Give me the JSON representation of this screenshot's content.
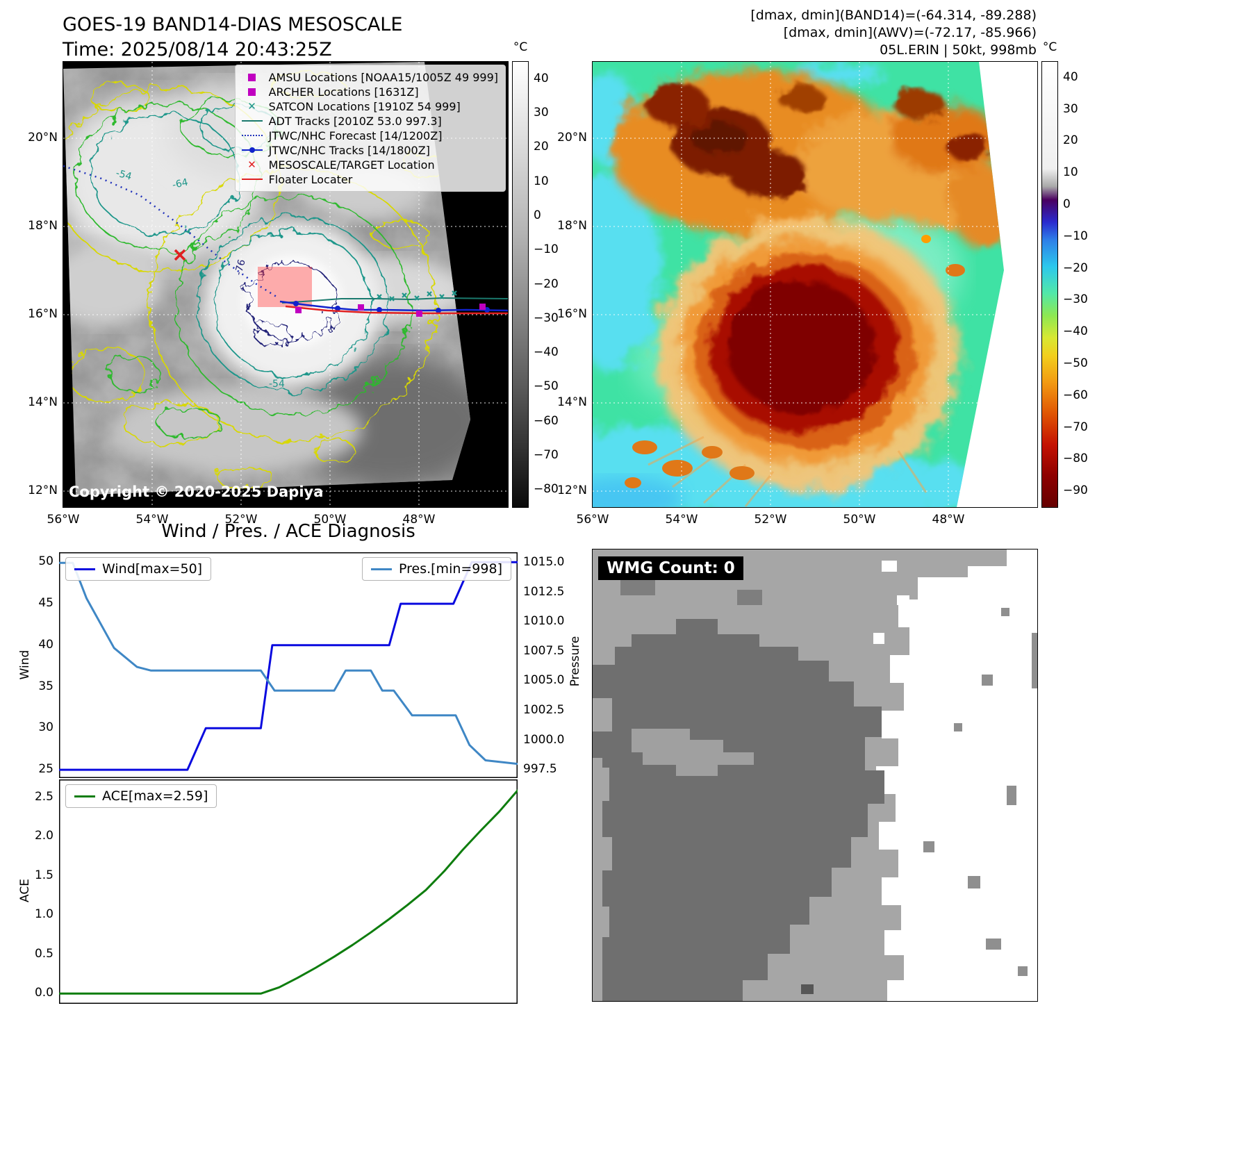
{
  "panel_band14": {
    "title1": "GOES-19 BAND14-DIAS MESOSCALE",
    "title2": "Time: 2025/08/14 20:43:25Z",
    "copyright": "Copyright © 2020-2025 Dapiya",
    "legend": [
      {
        "label": "AMSU Locations [NOAA15/1005Z 49 999]",
        "marker": "square",
        "color": "#c000c0"
      },
      {
        "label": "ARCHER Locations [1631Z]",
        "marker": "square",
        "color": "#c000c0"
      },
      {
        "label": "SATCON Locations [1910Z 54 999]",
        "marker": "x",
        "color": "#1f968a"
      },
      {
        "label": "ADT Tracks [2010Z 53.0 997.3]",
        "marker": "line",
        "color": "#1b7a6e"
      },
      {
        "label": "JTWC/NHC Forecast [14/1200Z]",
        "marker": "dotted",
        "color": "#2233bb"
      },
      {
        "label": "JTWC/NHC Tracks [14/1800Z]",
        "marker": "line-dot",
        "color": "#1122cc"
      },
      {
        "label": "MESOSCALE/TARGET Location",
        "marker": "x",
        "color": "#e02020"
      },
      {
        "label": "Floater Locater",
        "marker": "line",
        "color": "#e02020"
      }
    ],
    "lat_ticks": [
      "20°N",
      "18°N",
      "16°N",
      "14°N",
      "12°N"
    ],
    "lon_ticks": [
      "56°W",
      "54°W",
      "52°W",
      "50°W",
      "48°W"
    ],
    "colorbar": {
      "unit": "°C",
      "vmax": 45,
      "vmin": -85,
      "ticks": [
        "40",
        "30",
        "20",
        "10",
        "0",
        "−10",
        "−20",
        "−30",
        "−40",
        "−50",
        "−60",
        "−70",
        "−80"
      ]
    },
    "contour_labels": [
      "-54",
      "-64",
      "-76",
      "-54"
    ]
  },
  "panel_awv": {
    "header": [
      "[dmax, dmin](BAND14)=(-64.314, -89.288)",
      "[dmax, dmin](AWV)=(-72.17, -85.966)",
      "05L.ERIN | 50kt, 998mb"
    ],
    "lat_ticks": [
      "20°N",
      "18°N",
      "16°N",
      "14°N",
      "12°N"
    ],
    "lon_ticks": [
      "56°W",
      "54°W",
      "52°W",
      "50°W",
      "48°W"
    ],
    "colorbar": {
      "unit": "°C",
      "vmax": 45,
      "vmin": -95,
      "ticks": [
        "40",
        "30",
        "20",
        "10",
        "0",
        "−10",
        "−20",
        "−30",
        "−40",
        "−50",
        "−60",
        "−70",
        "−80",
        "−90"
      ]
    }
  },
  "wmg": {
    "count_label": "WMG Count: 0"
  },
  "chart_data": [
    {
      "type": "line",
      "title": "Wind / Pres. / ACE Diagnosis",
      "series": [
        {
          "name": "Wind[max=50]",
          "slug": "wind-line",
          "axis": "left",
          "color": "#0a0adf",
          "x": [
            0.0,
            0.28,
            0.32,
            0.44,
            0.465,
            0.72,
            0.745,
            0.86,
            0.9,
            1.0
          ],
          "y": [
            25,
            25,
            30,
            30,
            40,
            40,
            45,
            45,
            50,
            50
          ]
        },
        {
          "name": "Pres.[min=998]",
          "slug": "pressure-line",
          "axis": "right",
          "color": "#3f87c5",
          "x": [
            0.0,
            0.03,
            0.06,
            0.12,
            0.17,
            0.2,
            0.44,
            0.47,
            0.6,
            0.625,
            0.68,
            0.705,
            0.73,
            0.77,
            0.865,
            0.895,
            0.93,
            1.0
          ],
          "y": [
            1015,
            1015,
            1012,
            1007.8,
            1006.2,
            1005.9,
            1005.9,
            1004.2,
            1004.2,
            1005.9,
            1005.9,
            1004.2,
            1004.2,
            1002.1,
            1002.1,
            999.6,
            998.3,
            998.0
          ]
        }
      ],
      "left_axis": {
        "label": "Wind",
        "ticks": [
          "25",
          "30",
          "35",
          "40",
          "45",
          "50"
        ],
        "lim": [
          24,
          51.2
        ]
      },
      "right_axis": {
        "label": "Pressure",
        "ticks": [
          "997.5",
          "1000.0",
          "1002.5",
          "1005.0",
          "1007.5",
          "1010.0",
          "1012.5",
          "1015.0"
        ],
        "lim": [
          996.8,
          1015.9
        ]
      },
      "legend_position": "upper-left-and-upper-right",
      "grid": false
    },
    {
      "type": "line",
      "series": [
        {
          "name": "ACE[max=2.59]",
          "slug": "ace-line",
          "axis": "left",
          "color": "#0e7d0e",
          "x": [
            0.0,
            0.44,
            0.48,
            0.52,
            0.56,
            0.6,
            0.64,
            0.68,
            0.72,
            0.76,
            0.8,
            0.84,
            0.88,
            0.92,
            0.96,
            1.0
          ],
          "y": [
            0,
            0,
            0.08,
            0.2,
            0.33,
            0.47,
            0.62,
            0.78,
            0.95,
            1.13,
            1.32,
            1.56,
            1.83,
            2.08,
            2.32,
            2.59
          ]
        }
      ],
      "left_axis": {
        "label": "ACE",
        "ticks": [
          "0.0",
          "0.5",
          "1.0",
          "1.5",
          "2.0",
          "2.5"
        ],
        "lim": [
          -0.13,
          2.73
        ]
      },
      "legend_position": "upper-left",
      "grid": false
    }
  ]
}
